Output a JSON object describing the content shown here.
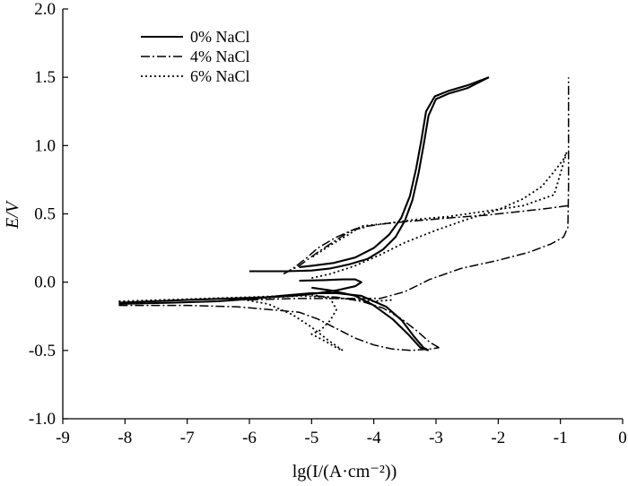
{
  "chart_data": {
    "type": "line",
    "xlabel": "lg(I/(A·cm⁻²))",
    "ylabel": "E/V",
    "xlim": [
      -9,
      0
    ],
    "ylim": [
      -1.0,
      2.0
    ],
    "xticks": [
      "-9",
      "-8",
      "-7",
      "-6",
      "-5",
      "-4",
      "-3",
      "-2",
      "-1",
      "0"
    ],
    "yticks": [
      "-1.0",
      "-0.5",
      "0.0",
      "0.5",
      "1.0",
      "1.5",
      "2.0"
    ],
    "grid": false,
    "legend_position": "top-left",
    "series": [
      {
        "name": "0% NaCl",
        "style": "solid",
        "segments": [
          [
            [
              -6.0,
              0.08
            ],
            [
              -5.4,
              0.08
            ],
            [
              -5.0,
              0.085
            ],
            [
              -4.7,
              0.1
            ],
            [
              -4.4,
              0.13
            ],
            [
              -4.1,
              0.17
            ],
            [
              -3.85,
              0.24
            ],
            [
              -3.65,
              0.33
            ],
            [
              -3.5,
              0.45
            ],
            [
              -3.38,
              0.6
            ],
            [
              -3.28,
              0.8
            ],
            [
              -3.2,
              1.0
            ],
            [
              -3.12,
              1.22
            ],
            [
              -3.0,
              1.34
            ],
            [
              -2.8,
              1.38
            ],
            [
              -2.5,
              1.42
            ],
            [
              -2.15,
              1.5
            ]
          ],
          [
            [
              -2.15,
              1.5
            ],
            [
              -2.5,
              1.44
            ],
            [
              -2.8,
              1.4
            ],
            [
              -3.02,
              1.36
            ],
            [
              -3.16,
              1.25
            ],
            [
              -3.24,
              1.03
            ],
            [
              -3.32,
              0.83
            ],
            [
              -3.42,
              0.63
            ],
            [
              -3.56,
              0.47
            ],
            [
              -3.75,
              0.35
            ],
            [
              -4.0,
              0.25
            ],
            [
              -4.3,
              0.18
            ],
            [
              -4.65,
              0.14
            ],
            [
              -5.0,
              0.12
            ],
            [
              -5.2,
              0.11
            ]
          ],
          [
            [
              -5.2,
              0.01
            ],
            [
              -4.8,
              0.015
            ],
            [
              -4.5,
              0.02
            ],
            [
              -4.3,
              0.02
            ],
            [
              -4.2,
              0.0
            ],
            [
              -4.3,
              -0.03
            ],
            [
              -4.6,
              -0.06
            ],
            [
              -4.9,
              -0.08
            ],
            [
              -5.3,
              -0.1
            ],
            [
              -5.7,
              -0.11
            ],
            [
              -6.3,
              -0.12
            ],
            [
              -7.0,
              -0.13
            ],
            [
              -8.1,
              -0.15
            ]
          ],
          [
            [
              -8.1,
              -0.16
            ],
            [
              -7.2,
              -0.15
            ],
            [
              -6.5,
              -0.14
            ],
            [
              -5.9,
              -0.12
            ],
            [
              -5.5,
              -0.1
            ],
            [
              -5.0,
              -0.08
            ],
            [
              -4.6,
              -0.08
            ],
            [
              -4.2,
              -0.1
            ],
            [
              -3.8,
              -0.18
            ],
            [
              -3.55,
              -0.28
            ],
            [
              -3.35,
              -0.4
            ],
            [
              -3.2,
              -0.48
            ],
            [
              -3.12,
              -0.5
            ]
          ],
          [
            [
              -3.12,
              -0.5
            ],
            [
              -3.25,
              -0.48
            ],
            [
              -3.45,
              -0.38
            ],
            [
              -3.7,
              -0.27
            ],
            [
              -4.0,
              -0.17
            ],
            [
              -4.3,
              -0.1
            ],
            [
              -4.7,
              -0.06
            ],
            [
              -5.0,
              -0.04
            ]
          ]
        ]
      },
      {
        "name": "4% NaCl",
        "style": "dashdot",
        "segments": [
          [
            [
              -8.1,
              -0.17
            ],
            [
              -7.0,
              -0.17
            ],
            [
              -6.2,
              -0.18
            ],
            [
              -5.7,
              -0.2
            ],
            [
              -5.2,
              -0.22
            ],
            [
              -4.9,
              -0.27
            ],
            [
              -4.6,
              -0.34
            ],
            [
              -4.3,
              -0.41
            ],
            [
              -4.0,
              -0.46
            ],
            [
              -3.7,
              -0.49
            ],
            [
              -3.4,
              -0.5
            ],
            [
              -3.1,
              -0.49
            ],
            [
              -2.95,
              -0.48
            ]
          ],
          [
            [
              -2.95,
              -0.48
            ],
            [
              -3.1,
              -0.44
            ],
            [
              -3.3,
              -0.36
            ],
            [
              -3.55,
              -0.27
            ],
            [
              -3.85,
              -0.19
            ],
            [
              -4.2,
              -0.14
            ],
            [
              -4.6,
              -0.11
            ],
            [
              -5.0,
              -0.1
            ]
          ],
          [
            [
              -6.0,
              -0.13
            ],
            [
              -5.3,
              -0.12
            ],
            [
              -4.8,
              -0.12
            ],
            [
              -4.3,
              -0.12
            ],
            [
              -3.9,
              -0.12
            ],
            [
              -3.5,
              -0.07
            ],
            [
              -3.1,
              0.02
            ],
            [
              -2.6,
              0.1
            ],
            [
              -2.0,
              0.16
            ],
            [
              -1.5,
              0.22
            ],
            [
              -1.15,
              0.28
            ],
            [
              -0.95,
              0.33
            ],
            [
              -0.88,
              0.4
            ],
            [
              -0.87,
              0.7
            ],
            [
              -0.87,
              1.0
            ],
            [
              -0.87,
              1.25
            ],
            [
              -0.87,
              1.5
            ]
          ],
          [
            [
              -0.88,
              0.56
            ],
            [
              -1.2,
              0.54
            ],
            [
              -1.6,
              0.52
            ],
            [
              -2.2,
              0.49
            ],
            [
              -2.8,
              0.47
            ],
            [
              -3.3,
              0.45
            ],
            [
              -3.8,
              0.43
            ],
            [
              -4.1,
              0.41
            ],
            [
              -4.3,
              0.39
            ],
            [
              -4.6,
              0.33
            ],
            [
              -4.9,
              0.25
            ],
            [
              -5.1,
              0.17
            ],
            [
              -5.3,
              0.1
            ],
            [
              -5.45,
              0.06
            ]
          ],
          [
            [
              -5.45,
              0.06
            ],
            [
              -5.2,
              0.12
            ],
            [
              -4.9,
              0.22
            ],
            [
              -4.6,
              0.31
            ],
            [
              -4.35,
              0.38
            ],
            [
              -4.15,
              0.4
            ]
          ]
        ]
      },
      {
        "name": "6% NaCl",
        "style": "dotted",
        "segments": [
          [
            [
              -8.1,
              -0.14
            ],
            [
              -7.4,
              -0.13
            ],
            [
              -6.7,
              -0.12
            ],
            [
              -6.0,
              -0.11
            ],
            [
              -5.4,
              -0.1
            ],
            [
              -5.0,
              -0.09
            ],
            [
              -4.7,
              -0.12
            ],
            [
              -4.6,
              -0.2
            ],
            [
              -4.7,
              -0.28
            ],
            [
              -4.85,
              -0.35
            ],
            [
              -5.0,
              -0.38
            ],
            [
              -4.75,
              -0.44
            ],
            [
              -4.6,
              -0.48
            ],
            [
              -4.5,
              -0.5
            ]
          ],
          [
            [
              -4.5,
              -0.5
            ],
            [
              -4.75,
              -0.42
            ],
            [
              -5.0,
              -0.33
            ],
            [
              -5.3,
              -0.24
            ],
            [
              -5.7,
              -0.16
            ],
            [
              -6.2,
              -0.12
            ]
          ],
          [
            [
              -5.9,
              -0.12
            ],
            [
              -5.2,
              -0.1
            ],
            [
              -4.7,
              -0.11
            ],
            [
              -4.3,
              -0.13
            ],
            [
              -4.0,
              -0.14
            ],
            [
              -3.7,
              -0.13
            ]
          ],
          [
            [
              -5.0,
              0.03
            ],
            [
              -4.7,
              0.06
            ],
            [
              -4.3,
              0.12
            ],
            [
              -3.9,
              0.2
            ],
            [
              -3.5,
              0.29
            ],
            [
              -3.0,
              0.38
            ],
            [
              -2.5,
              0.46
            ],
            [
              -2.0,
              0.53
            ],
            [
              -1.6,
              0.61
            ],
            [
              -1.3,
              0.7
            ],
            [
              -1.1,
              0.81
            ],
            [
              -0.95,
              0.9
            ],
            [
              -0.9,
              0.95
            ]
          ],
          [
            [
              -0.9,
              0.95
            ],
            [
              -1.1,
              0.64
            ],
            [
              -1.6,
              0.56
            ],
            [
              -2.2,
              0.52
            ],
            [
              -2.8,
              0.48
            ],
            [
              -3.3,
              0.46
            ],
            [
              -3.8,
              0.43
            ],
            [
              -4.2,
              0.41
            ],
            [
              -4.4,
              0.35
            ],
            [
              -4.7,
              0.27
            ],
            [
              -5.0,
              0.18
            ]
          ]
        ]
      }
    ]
  }
}
